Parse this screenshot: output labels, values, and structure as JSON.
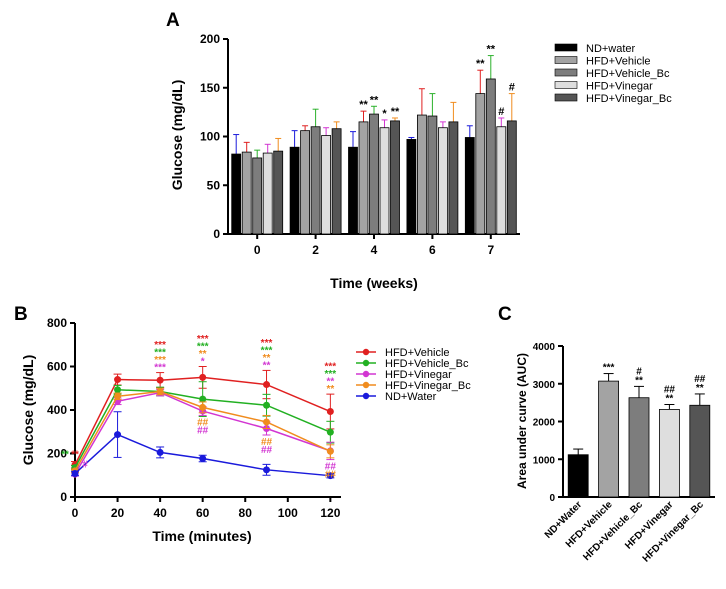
{
  "chart_data": [
    {
      "panel": "A",
      "type": "bar",
      "ylabel": "Glucose (mg/dL)",
      "xlabel": "Time (weeks)",
      "ylim": [
        0,
        200
      ],
      "yticks": [
        0,
        50,
        100,
        150,
        200
      ],
      "categories": [
        "0",
        "2",
        "4",
        "6",
        "7"
      ],
      "series": [
        {
          "name": "ND+water",
          "color": "#000000",
          "err_color": "#1a1adb",
          "values": [
            82,
            89,
            89,
            97,
            99
          ],
          "errors": [
            20,
            17,
            16,
            2,
            12
          ]
        },
        {
          "name": "HFD+Vehicle",
          "color": "#a3a3a3",
          "err_color": "#e02020",
          "values": [
            84,
            106,
            115,
            122,
            144
          ],
          "errors": [
            10,
            5,
            11,
            27,
            24
          ]
        },
        {
          "name": "HFD+Vehicle_Bc",
          "color": "#7d7d7d",
          "err_color": "#2bb12b",
          "values": [
            78,
            110,
            123,
            121,
            159
          ],
          "errors": [
            8,
            18,
            8,
            23,
            24
          ]
        },
        {
          "name": "HFD+Vinegar",
          "color": "#dedede",
          "err_color": "#d236d2",
          "values": [
            83,
            101,
            109,
            109,
            110
          ],
          "errors": [
            9,
            8,
            8,
            6,
            9
          ]
        },
        {
          "name": "HFD+Vinegar_Bc",
          "color": "#555555",
          "err_color": "#f08c1e",
          "values": [
            85,
            108,
            116,
            115,
            116
          ],
          "errors": [
            13,
            7,
            3,
            20,
            28
          ]
        }
      ],
      "annotations": [
        {
          "category": "4",
          "series": "HFD+Vehicle",
          "text": "**"
        },
        {
          "category": "4",
          "series": "HFD+Vehicle_Bc",
          "text": "**"
        },
        {
          "category": "4",
          "series": "HFD+Vinegar",
          "text": "*"
        },
        {
          "category": "4",
          "series": "HFD+Vinegar_Bc",
          "text": "**"
        },
        {
          "category": "7",
          "series": "HFD+Vehicle",
          "text": "**"
        },
        {
          "category": "7",
          "series": "HFD+Vehicle_Bc",
          "text": "**"
        },
        {
          "category": "7",
          "series": "HFD+Vinegar",
          "text": "#"
        },
        {
          "category": "7",
          "series": "HFD+Vinegar_Bc",
          "text": "#"
        }
      ],
      "legend_position": "right"
    },
    {
      "panel": "B",
      "type": "line",
      "ylabel": "Glucose (mg/dL)",
      "xlabel": "Time (minutes)",
      "xlim": [
        0,
        125
      ],
      "ylim": [
        0,
        800
      ],
      "xticks": [
        0,
        20,
        40,
        60,
        80,
        100,
        120
      ],
      "yticks": [
        0,
        200,
        400,
        600,
        800
      ],
      "x": [
        0,
        20,
        40,
        60,
        90,
        120
      ],
      "series": [
        {
          "name": "HFD+Vehicle",
          "color": "#e02020",
          "values": [
            148,
            540,
            537,
            550,
            517,
            393
          ],
          "errors": [
            15,
            25,
            35,
            50,
            65,
            80
          ]
        },
        {
          "name": "HFD+Vehicle_Bc",
          "color": "#22b022",
          "values": [
            135,
            493,
            485,
            450,
            422,
            298
          ],
          "errors": [
            10,
            20,
            20,
            80,
            50,
            50
          ]
        },
        {
          "name": "HFD+Vinegar",
          "color": "#d236d2",
          "values": [
            105,
            440,
            480,
            395,
            315,
            212
          ],
          "errors": [
            8,
            15,
            15,
            20,
            30,
            40
          ]
        },
        {
          "name": "HFD+Vinegar_Bc",
          "color": "#f08c1e",
          "values": [
            120,
            463,
            485,
            412,
            345,
            210
          ],
          "errors": [
            8,
            15,
            15,
            25,
            30,
            30
          ]
        },
        {
          "name": "ND+Water",
          "color": "#1a1adb",
          "values": [
            108,
            287,
            205,
            177,
            125,
            98
          ],
          "errors": [
            10,
            105,
            25,
            15,
            25,
            10
          ]
        }
      ],
      "annotations": [
        {
          "x": 0,
          "lines": [
            {
              "text": "**",
              "color": "#22b022"
            },
            {
              "text": "**",
              "color": "#e02020"
            },
            {
              "text": "#",
              "color": "#d236d2"
            }
          ],
          "layout": "row"
        },
        {
          "x": 40,
          "lines": [
            {
              "text": "***",
              "color": "#e02020"
            },
            {
              "text": "***",
              "color": "#22b022"
            },
            {
              "text": "***",
              "color": "#f08c1e"
            },
            {
              "text": "***",
              "color": "#d236d2"
            }
          ],
          "layout": "stack-above"
        },
        {
          "x": 60,
          "lines": [
            {
              "text": "***",
              "color": "#e02020"
            },
            {
              "text": "***",
              "color": "#22b022"
            },
            {
              "text": "**",
              "color": "#f08c1e"
            },
            {
              "text": "*",
              "color": "#d236d2"
            }
          ],
          "layout": "stack-above"
        },
        {
          "x": 60,
          "lines": [
            {
              "text": "##",
              "color": "#f08c1e"
            },
            {
              "text": "##",
              "color": "#d236d2"
            }
          ],
          "layout": "stack-below"
        },
        {
          "x": 90,
          "lines": [
            {
              "text": "***",
              "color": "#e02020"
            },
            {
              "text": "***",
              "color": "#22b022"
            },
            {
              "text": "**",
              "color": "#f08c1e"
            },
            {
              "text": "**",
              "color": "#d236d2"
            }
          ],
          "layout": "stack-above"
        },
        {
          "x": 90,
          "lines": [
            {
              "text": "##",
              "color": "#f08c1e"
            },
            {
              "text": "##",
              "color": "#d236d2"
            }
          ],
          "layout": "stack-below"
        },
        {
          "x": 120,
          "lines": [
            {
              "text": "***",
              "color": "#e02020"
            },
            {
              "text": "***",
              "color": "#22b022"
            },
            {
              "text": "**",
              "color": "#d236d2"
            },
            {
              "text": "**",
              "color": "#f08c1e"
            }
          ],
          "layout": "stack-above"
        },
        {
          "x": 120,
          "lines": [
            {
              "text": "##",
              "color": "#d236d2"
            },
            {
              "text": "##",
              "color": "#f08c1e"
            }
          ],
          "layout": "stack-below"
        }
      ],
      "legend_position": "right"
    },
    {
      "panel": "C",
      "type": "bar",
      "ylabel": "Area under curve (AUC)",
      "xlabel": "",
      "ylim": [
        0,
        4000
      ],
      "yticks": [
        0,
        1000,
        2000,
        3000,
        4000
      ],
      "categories": [
        "ND+Water",
        "HFD+Vehicle",
        "HFD+Vehicle_Bc",
        "HFD+Vinegar",
        "HFD+Vinegar_Bc"
      ],
      "colors": [
        "#000000",
        "#a3a3a3",
        "#7d7d7d",
        "#dedede",
        "#555555"
      ],
      "values": [
        1120,
        3070,
        2630,
        2320,
        2430
      ],
      "errors": [
        150,
        200,
        300,
        130,
        300
      ],
      "annotations": [
        {
          "category": "HFD+Vehicle",
          "lines": [
            "***"
          ]
        },
        {
          "category": "HFD+Vehicle_Bc",
          "lines": [
            "#",
            "**"
          ]
        },
        {
          "category": "HFD+Vinegar",
          "lines": [
            "##",
            "**"
          ]
        },
        {
          "category": "HFD+Vinegar_Bc",
          "lines": [
            "##",
            "**"
          ]
        }
      ]
    }
  ]
}
